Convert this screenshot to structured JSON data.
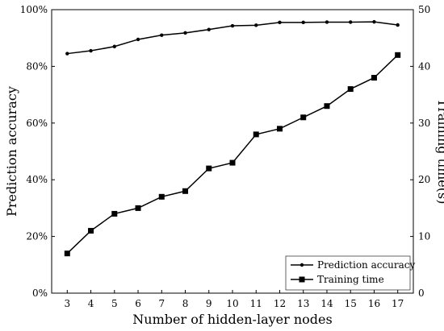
{
  "chart_data": {
    "type": "line",
    "xlabel": "Number of hidden-layer nodes",
    "ylabel_left": "Prediction accuracy",
    "ylabel_right": "Training time(s)",
    "x": [
      3,
      4,
      5,
      6,
      7,
      8,
      9,
      10,
      11,
      12,
      13,
      14,
      15,
      16,
      17
    ],
    "ylim_left": [
      0,
      100
    ],
    "ylim_right": [
      0,
      50
    ],
    "left_ticks": [
      "0%",
      "20%",
      "40%",
      "60%",
      "80%",
      "100%"
    ],
    "right_ticks": [
      "0",
      "10",
      "20",
      "30",
      "40",
      "50"
    ],
    "grid": false,
    "legend_position": "bottom-right",
    "series": [
      {
        "name": "Prediction accuracy",
        "axis": "left",
        "marker": "circle",
        "values": [
          84.5,
          85.5,
          87.0,
          89.5,
          91.0,
          91.8,
          93.0,
          94.3,
          94.5,
          95.5,
          95.5,
          95.6,
          95.6,
          95.7,
          94.6
        ]
      },
      {
        "name": "Training time",
        "axis": "right",
        "marker": "square",
        "values": [
          7,
          11,
          14,
          15,
          17,
          18,
          22,
          23,
          28,
          29,
          31,
          33,
          36,
          38,
          42
        ]
      }
    ]
  }
}
